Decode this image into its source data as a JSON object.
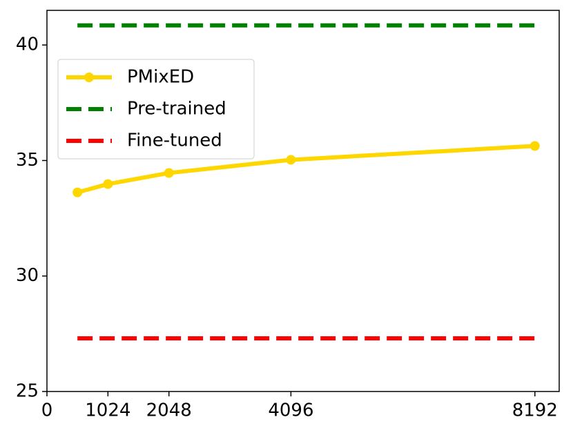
{
  "chart_data": {
    "type": "line",
    "xlim": [
      0,
      8600
    ],
    "ylim": [
      25,
      41.5
    ],
    "xticks": [
      0,
      1024,
      2048,
      4096,
      8192
    ],
    "yticks": [
      25,
      30,
      35,
      40
    ],
    "legend": "upper left",
    "series": [
      {
        "name": "PMixED",
        "color": "#ffd700",
        "style": "solid",
        "marker": true,
        "x": [
          512,
          1024,
          2048,
          4096,
          8192
        ],
        "values": [
          33.62,
          33.98,
          34.46,
          35.03,
          35.63
        ]
      },
      {
        "name": "Pre-trained",
        "color": "#008000",
        "style": "dashed",
        "marker": false,
        "x": [
          512,
          8192
        ],
        "values": [
          40.85,
          40.85
        ]
      },
      {
        "name": "Fine-tuned",
        "color": "#ff0000",
        "style": "dashed",
        "marker": false,
        "x": [
          512,
          8192
        ],
        "values": [
          27.3,
          27.3
        ]
      }
    ]
  }
}
